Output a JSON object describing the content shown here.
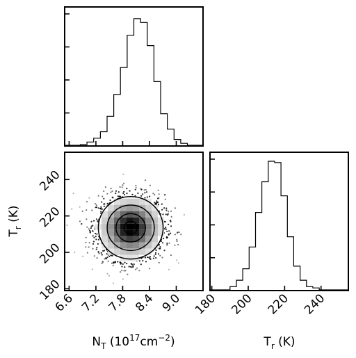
{
  "chart_data": {
    "type": "corner",
    "panels": {
      "hist_N": {
        "type": "histogram",
        "x_domain": [
          6.5,
          9.6
        ],
        "y_max": 1.0,
        "bin_edges": [
          6.85,
          7.0,
          7.15,
          7.3,
          7.45,
          7.6,
          7.75,
          7.9,
          8.05,
          8.2,
          8.35,
          8.5,
          8.65,
          8.8,
          8.95,
          9.1,
          9.25
        ],
        "counts": [
          0.0,
          0.02,
          0.05,
          0.1,
          0.22,
          0.39,
          0.6,
          0.85,
          0.98,
          0.95,
          0.77,
          0.49,
          0.24,
          0.12,
          0.04,
          0.01
        ]
      },
      "scatter_N_T": {
        "type": "density",
        "x_domain": [
          6.5,
          9.6
        ],
        "y_domain": [
          179,
          255
        ],
        "x_ticks": [
          6.6,
          7.2,
          7.8,
          8.4,
          9.0
        ],
        "x_tick_labels": [
          "6.6",
          "7.2",
          "7.8",
          "8.4",
          "9.0"
        ],
        "y_ticks": [
          180,
          200,
          220,
          240
        ],
        "y_tick_labels": [
          "180",
          "200",
          "220",
          "240"
        ],
        "center": [
          7.98,
          213.5
        ],
        "spread": [
          0.33,
          7.8
        ],
        "contour_levels": [
          2.2,
          1.6,
          1.0,
          0.45
        ],
        "xlabel_parts": [
          "N",
          "T",
          " (10",
          "17",
          "cm",
          "−2",
          ")"
        ],
        "ylabel_parts": [
          "T",
          "r",
          " (K)"
        ]
      },
      "hist_T": {
        "type": "histogram",
        "x_domain": [
          179,
          255
        ],
        "y_max": 1.0,
        "x_ticks": [
          180,
          200,
          220,
          240
        ],
        "x_tick_labels": [
          "180",
          "200",
          "220",
          "240"
        ],
        "bin_edges": [
          190,
          193.5,
          197,
          200.5,
          204,
          207.5,
          211,
          214.5,
          218,
          221.5,
          225,
          228.5,
          232,
          235.5,
          239
        ],
        "counts": [
          0.02,
          0.07,
          0.16,
          0.33,
          0.6,
          0.84,
          1.0,
          0.99,
          0.73,
          0.41,
          0.18,
          0.07,
          0.02,
          0.01
        ],
        "xlabel_parts": [
          "T",
          "r",
          " (K)"
        ]
      }
    }
  }
}
